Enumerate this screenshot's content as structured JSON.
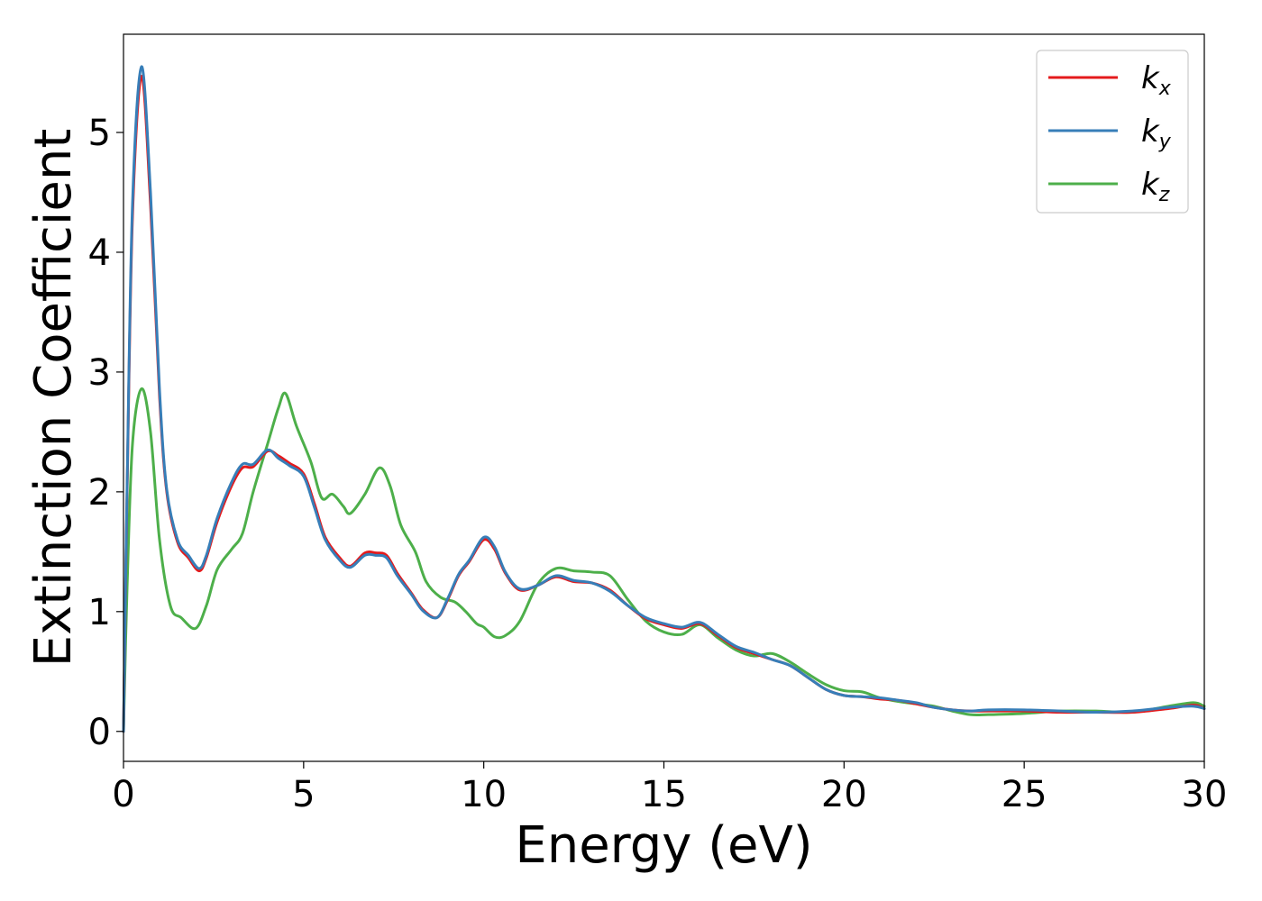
{
  "chart_data": {
    "type": "line",
    "xlabel": "Energy (eV)",
    "ylabel": "Extinction Coefficient",
    "xlim": [
      0,
      30
    ],
    "ylim": [
      -0.25,
      5.82
    ],
    "xticks": [
      "0",
      "5",
      "10",
      "15",
      "20",
      "25",
      "30"
    ],
    "yticks": [
      "0",
      "1",
      "2",
      "3",
      "4",
      "5"
    ],
    "grid": false,
    "legend_position": "top-right",
    "series": [
      {
        "name": "kx",
        "label_base": "k",
        "label_sub": "x",
        "color": "#e41a1c",
        "points": [
          [
            0,
            0
          ],
          [
            0.1,
            2.0
          ],
          [
            0.25,
            4.3
          ],
          [
            0.5,
            5.47
          ],
          [
            0.75,
            4.4
          ],
          [
            1.0,
            2.8
          ],
          [
            1.2,
            2.0
          ],
          [
            1.5,
            1.58
          ],
          [
            1.8,
            1.45
          ],
          [
            2.1,
            1.34
          ],
          [
            2.3,
            1.45
          ],
          [
            2.6,
            1.75
          ],
          [
            3.0,
            2.05
          ],
          [
            3.3,
            2.2
          ],
          [
            3.6,
            2.21
          ],
          [
            4.0,
            2.34
          ],
          [
            4.3,
            2.3
          ],
          [
            4.6,
            2.24
          ],
          [
            5.0,
            2.15
          ],
          [
            5.3,
            1.9
          ],
          [
            5.6,
            1.62
          ],
          [
            6.0,
            1.45
          ],
          [
            6.3,
            1.38
          ],
          [
            6.7,
            1.49
          ],
          [
            7.0,
            1.49
          ],
          [
            7.3,
            1.47
          ],
          [
            7.6,
            1.32
          ],
          [
            8.0,
            1.15
          ],
          [
            8.3,
            1.02
          ],
          [
            8.7,
            0.95
          ],
          [
            9.0,
            1.1
          ],
          [
            9.3,
            1.3
          ],
          [
            9.6,
            1.42
          ],
          [
            10.0,
            1.6
          ],
          [
            10.3,
            1.52
          ],
          [
            10.6,
            1.32
          ],
          [
            11.0,
            1.18
          ],
          [
            11.5,
            1.22
          ],
          [
            12.0,
            1.29
          ],
          [
            12.5,
            1.25
          ],
          [
            13.0,
            1.24
          ],
          [
            13.5,
            1.18
          ],
          [
            14.0,
            1.05
          ],
          [
            14.5,
            0.94
          ],
          [
            15.0,
            0.89
          ],
          [
            15.5,
            0.86
          ],
          [
            16.0,
            0.9
          ],
          [
            16.5,
            0.8
          ],
          [
            17.0,
            0.7
          ],
          [
            17.5,
            0.65
          ],
          [
            18.0,
            0.6
          ],
          [
            18.5,
            0.55
          ],
          [
            19.0,
            0.45
          ],
          [
            19.5,
            0.35
          ],
          [
            20.0,
            0.3
          ],
          [
            20.5,
            0.29
          ],
          [
            21.0,
            0.27
          ],
          [
            21.5,
            0.26
          ],
          [
            22.0,
            0.23
          ],
          [
            22.5,
            0.2
          ],
          [
            23.0,
            0.18
          ],
          [
            23.5,
            0.17
          ],
          [
            24.0,
            0.17
          ],
          [
            25.0,
            0.17
          ],
          [
            26.0,
            0.16
          ],
          [
            27.0,
            0.16
          ],
          [
            28.0,
            0.16
          ],
          [
            29.0,
            0.19
          ],
          [
            29.7,
            0.22
          ],
          [
            30.0,
            0.19
          ]
        ]
      },
      {
        "name": "ky",
        "label_base": "k",
        "label_sub": "y",
        "color": "#377eb8",
        "points": [
          [
            0,
            0
          ],
          [
            0.1,
            2.05
          ],
          [
            0.25,
            4.4
          ],
          [
            0.5,
            5.55
          ],
          [
            0.75,
            4.5
          ],
          [
            1.0,
            2.85
          ],
          [
            1.2,
            2.02
          ],
          [
            1.5,
            1.6
          ],
          [
            1.8,
            1.47
          ],
          [
            2.1,
            1.36
          ],
          [
            2.3,
            1.47
          ],
          [
            2.6,
            1.78
          ],
          [
            3.0,
            2.08
          ],
          [
            3.3,
            2.23
          ],
          [
            3.6,
            2.23
          ],
          [
            4.0,
            2.35
          ],
          [
            4.3,
            2.28
          ],
          [
            4.6,
            2.22
          ],
          [
            5.0,
            2.13
          ],
          [
            5.3,
            1.87
          ],
          [
            5.6,
            1.6
          ],
          [
            6.0,
            1.43
          ],
          [
            6.3,
            1.37
          ],
          [
            6.7,
            1.47
          ],
          [
            7.0,
            1.47
          ],
          [
            7.3,
            1.45
          ],
          [
            7.6,
            1.3
          ],
          [
            8.0,
            1.14
          ],
          [
            8.3,
            1.01
          ],
          [
            8.7,
            0.95
          ],
          [
            9.0,
            1.11
          ],
          [
            9.3,
            1.31
          ],
          [
            9.6,
            1.43
          ],
          [
            10.0,
            1.62
          ],
          [
            10.3,
            1.54
          ],
          [
            10.6,
            1.33
          ],
          [
            11.0,
            1.19
          ],
          [
            11.5,
            1.22
          ],
          [
            12.0,
            1.3
          ],
          [
            12.5,
            1.26
          ],
          [
            13.0,
            1.24
          ],
          [
            13.5,
            1.17
          ],
          [
            14.0,
            1.05
          ],
          [
            14.5,
            0.95
          ],
          [
            15.0,
            0.9
          ],
          [
            15.5,
            0.87
          ],
          [
            16.0,
            0.91
          ],
          [
            16.5,
            0.81
          ],
          [
            17.0,
            0.71
          ],
          [
            17.5,
            0.66
          ],
          [
            18.0,
            0.6
          ],
          [
            18.5,
            0.55
          ],
          [
            19.0,
            0.45
          ],
          [
            19.5,
            0.35
          ],
          [
            20.0,
            0.3
          ],
          [
            20.5,
            0.29
          ],
          [
            21.0,
            0.28
          ],
          [
            21.5,
            0.26
          ],
          [
            22.0,
            0.24
          ],
          [
            22.5,
            0.2
          ],
          [
            23.0,
            0.18
          ],
          [
            23.5,
            0.17
          ],
          [
            24.0,
            0.18
          ],
          [
            25.0,
            0.18
          ],
          [
            26.0,
            0.17
          ],
          [
            27.0,
            0.16
          ],
          [
            28.0,
            0.17
          ],
          [
            29.0,
            0.2
          ],
          [
            29.7,
            0.21
          ],
          [
            30.0,
            0.19
          ]
        ]
      },
      {
        "name": "kz",
        "label_base": "k",
        "label_sub": "z",
        "color": "#4daf4a",
        "points": [
          [
            0,
            0
          ],
          [
            0.1,
            1.2
          ],
          [
            0.25,
            2.4
          ],
          [
            0.5,
            2.86
          ],
          [
            0.75,
            2.5
          ],
          [
            1.0,
            1.6
          ],
          [
            1.3,
            1.05
          ],
          [
            1.6,
            0.95
          ],
          [
            2.0,
            0.86
          ],
          [
            2.3,
            1.05
          ],
          [
            2.6,
            1.35
          ],
          [
            3.0,
            1.52
          ],
          [
            3.3,
            1.65
          ],
          [
            3.6,
            2.0
          ],
          [
            4.0,
            2.4
          ],
          [
            4.3,
            2.7
          ],
          [
            4.5,
            2.82
          ],
          [
            4.8,
            2.55
          ],
          [
            5.2,
            2.25
          ],
          [
            5.5,
            1.95
          ],
          [
            5.8,
            1.98
          ],
          [
            6.1,
            1.88
          ],
          [
            6.3,
            1.82
          ],
          [
            6.7,
            1.98
          ],
          [
            7.1,
            2.2
          ],
          [
            7.4,
            2.05
          ],
          [
            7.7,
            1.72
          ],
          [
            8.1,
            1.5
          ],
          [
            8.4,
            1.25
          ],
          [
            8.8,
            1.12
          ],
          [
            9.2,
            1.08
          ],
          [
            9.5,
            1.0
          ],
          [
            9.8,
            0.9
          ],
          [
            10.0,
            0.87
          ],
          [
            10.3,
            0.79
          ],
          [
            10.6,
            0.8
          ],
          [
            11.0,
            0.92
          ],
          [
            11.5,
            1.23
          ],
          [
            12.0,
            1.36
          ],
          [
            12.5,
            1.34
          ],
          [
            13.0,
            1.33
          ],
          [
            13.5,
            1.3
          ],
          [
            14.0,
            1.1
          ],
          [
            14.5,
            0.92
          ],
          [
            15.0,
            0.83
          ],
          [
            15.5,
            0.81
          ],
          [
            16.0,
            0.89
          ],
          [
            16.5,
            0.78
          ],
          [
            17.0,
            0.68
          ],
          [
            17.5,
            0.63
          ],
          [
            18.0,
            0.65
          ],
          [
            18.5,
            0.58
          ],
          [
            19.0,
            0.48
          ],
          [
            19.5,
            0.39
          ],
          [
            20.0,
            0.34
          ],
          [
            20.5,
            0.33
          ],
          [
            21.0,
            0.28
          ],
          [
            21.5,
            0.25
          ],
          [
            22.0,
            0.23
          ],
          [
            22.5,
            0.21
          ],
          [
            23.0,
            0.17
          ],
          [
            23.5,
            0.14
          ],
          [
            24.0,
            0.14
          ],
          [
            25.0,
            0.15
          ],
          [
            26.0,
            0.17
          ],
          [
            27.0,
            0.17
          ],
          [
            28.0,
            0.16
          ],
          [
            29.0,
            0.21
          ],
          [
            29.7,
            0.24
          ],
          [
            30.0,
            0.21
          ]
        ]
      }
    ]
  }
}
